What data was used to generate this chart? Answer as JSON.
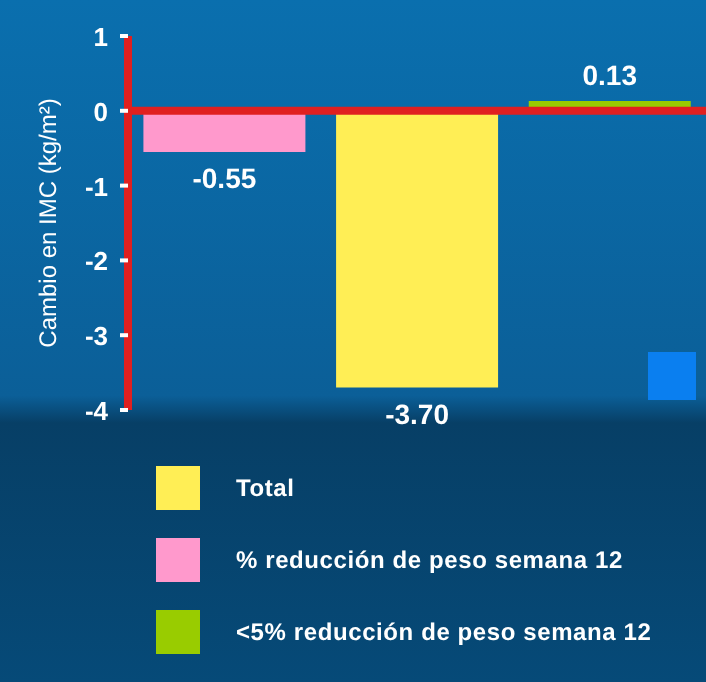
{
  "chart_data": {
    "type": "bar",
    "ylabel": "Cambio en IMC (kg/m²)",
    "categories": [
      null,
      null,
      null
    ],
    "ylim": [
      -4,
      1
    ],
    "yticks": [
      -4,
      -3,
      -2,
      -1,
      0,
      1
    ],
    "grid": false,
    "legend": "bottom",
    "ref_lines": [
      {
        "axis": "y",
        "value": 0,
        "color": "#e02020"
      }
    ],
    "series": [
      {
        "name": "Total",
        "color": "#ffee55",
        "values": [
          null,
          -3.7,
          null
        ],
        "value_labels": [
          null,
          "-3.70",
          null
        ]
      },
      {
        "name": "% reducción de peso semana 12",
        "color": "#ff99cc",
        "values": [
          -0.55,
          null,
          null
        ],
        "value_labels": [
          "-0.55",
          null,
          null
        ]
      },
      {
        "name": "<5% reducción de peso semana 12",
        "color": "#99cc00",
        "values": [
          null,
          null,
          0.13
        ],
        "value_labels": [
          null,
          null,
          "0.13"
        ]
      }
    ]
  }
}
